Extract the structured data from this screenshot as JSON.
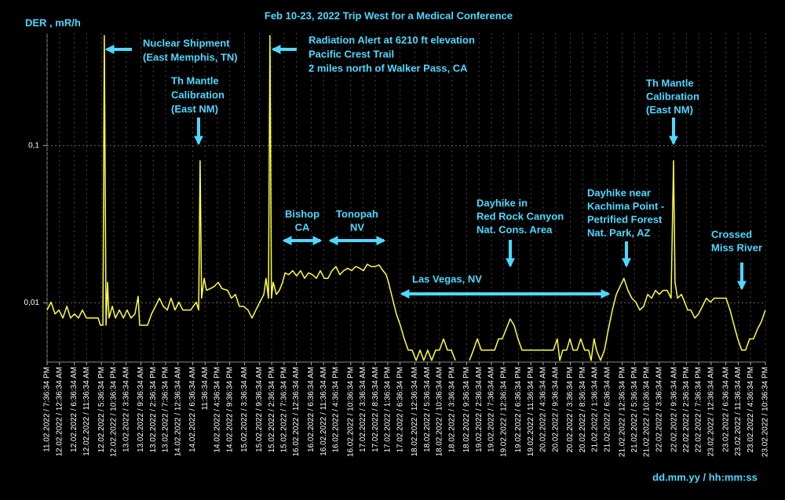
{
  "chart_data": {
    "type": "line",
    "title": "Feb 10-23, 2022 Trip West for a Medical Conference",
    "y_label": "DER , mR/h",
    "x_label": "dd.mm.yy / hh:mm:ss",
    "ylog": true,
    "grid": true,
    "ylim": [
      0.0042,
      0.52
    ],
    "yticks": [
      {
        "value": 0.01,
        "label": "0,01"
      },
      {
        "value": 0.1,
        "label": "0,1"
      }
    ],
    "xlim": [
      0,
      291
    ],
    "xticks": [
      {
        "value": 0,
        "label": "11.02.2022 / 7:36:34 PM"
      },
      {
        "value": 5,
        "label": "12.02.2022 / 12:36:34 AM"
      },
      {
        "value": 11,
        "label": "12.02.2022 / 6:36:34 AM"
      },
      {
        "value": 16,
        "label": "12.02.2022 / 11:36:34 AM"
      },
      {
        "value": 22,
        "label": "12.02.2022 / 5:36:34 PM"
      },
      {
        "value": 27,
        "label": "12.02.2022 / 10:36:34 PM"
      },
      {
        "value": 32,
        "label": "13.02.2022 / 3:36:34 AM"
      },
      {
        "value": 38,
        "label": "13.02.2022 / 9:36:34 AM"
      },
      {
        "value": 43,
        "label": "13.02.2022 / 2:36:34 PM"
      },
      {
        "value": 48,
        "label": "13.02.2022 / 7:36:34 PM"
      },
      {
        "value": 53,
        "label": "14.02.2022 / 12:36:34 AM"
      },
      {
        "value": 59,
        "label": "14.02.2022 / 6:36:34 AM"
      },
      {
        "value": 64,
        "label": "11:36:34 AM"
      },
      {
        "value": 69,
        "label": "14.02.2022 / 4:36:34 PM"
      },
      {
        "value": 74,
        "label": "14.02.2022 / 9:36:34 PM"
      },
      {
        "value": 80,
        "label": "15.02.2022 / 3:36:34 AM"
      },
      {
        "value": 86,
        "label": "15.02.2022 / 9:36:34 AM"
      },
      {
        "value": 91,
        "label": "15.02.2022 / 2:36:34 PM"
      },
      {
        "value": 96,
        "label": "15.02.2022 / 7:36:34 PM"
      },
      {
        "value": 101,
        "label": "16.02.2022 / 12:36:34 AM"
      },
      {
        "value": 107,
        "label": "16.02.2022 / 6:36:34 AM"
      },
      {
        "value": 112,
        "label": "16.02.2022 / 11:36:34 AM"
      },
      {
        "value": 117,
        "label": "16.02.2022 / 4:36:34 PM"
      },
      {
        "value": 123,
        "label": "16.02.2022 / 10:36:34 PM"
      },
      {
        "value": 128,
        "label": "17.02.2022 / 3:36:34 AM"
      },
      {
        "value": 133,
        "label": "17.02.2022 / 8:36:34 AM"
      },
      {
        "value": 138,
        "label": "17.02.2022 / 1:36:34 PM"
      },
      {
        "value": 143,
        "label": "17.02.2022 / 6:36:34 PM"
      },
      {
        "value": 149,
        "label": "18.02.2022 / 12:36:34 AM"
      },
      {
        "value": 154,
        "label": "18.02.2022 / 5:36:34 AM"
      },
      {
        "value": 159,
        "label": "18.02.2022 / 10:36:34 AM"
      },
      {
        "value": 164,
        "label": "18.02.2022 / 3:36:34 PM"
      },
      {
        "value": 170,
        "label": "18.02.2022 / 9:36:34 PM"
      },
      {
        "value": 175,
        "label": "19.02.2022 / 2:36:34 AM"
      },
      {
        "value": 180,
        "label": "19.02.2022 / 7:36:34 AM"
      },
      {
        "value": 185,
        "label": "19.02.2022 / 12:36:34 PM"
      },
      {
        "value": 191,
        "label": "19.02.2022 / 6:36:34 PM"
      },
      {
        "value": 196,
        "label": "19.02.2022 / 11:36:34 PM"
      },
      {
        "value": 201,
        "label": "20.02.2022 / 4:36:34 AM"
      },
      {
        "value": 206,
        "label": "20.02.2022 / 9:36:34 AM"
      },
      {
        "value": 212,
        "label": "20.02.2022 / 3:36:34 PM"
      },
      {
        "value": 217,
        "label": "20.02.2022 / 8:36:34 PM"
      },
      {
        "value": 222,
        "label": "21.02.2022 / 1:36:34 AM"
      },
      {
        "value": 227,
        "label": "21.02.2022 / 6:36:34 AM"
      },
      {
        "value": 233,
        "label": "21.02.2022 / 12:36:34 PM"
      },
      {
        "value": 238,
        "label": "21.02.2022 / 5:36:34 PM"
      },
      {
        "value": 243,
        "label": "21.02.2022 / 10:36:34 PM"
      },
      {
        "value": 248,
        "label": "22.02.2022 / 3:36:34 AM"
      },
      {
        "value": 254,
        "label": "22.02.2022 / 9:36:34 AM"
      },
      {
        "value": 259,
        "label": "22.02.2022 / 2:36:34 PM"
      },
      {
        "value": 264,
        "label": "22.02.2022 / 7:36:34 PM"
      },
      {
        "value": 269,
        "label": "23.02.2022 / 12:36:34 AM"
      },
      {
        "value": 275,
        "label": "23.02.2022 / 6:36:34 AM"
      },
      {
        "value": 280,
        "label": "23.02.2022 / 11:36:34 AM"
      },
      {
        "value": 285,
        "label": "23.02.2022 / 4:36:34 PM"
      },
      {
        "value": 291,
        "label": "23.02.2022 / 10:36:34 PM"
      }
    ],
    "series": [
      {
        "color": "#ffff40",
        "x": [
          0,
          1.6,
          3.2,
          4.8,
          6.4,
          8,
          9.5,
          11.1,
          12.7,
          14.3,
          15.9,
          19.1,
          20.7,
          21.6,
          22.6,
          23.2,
          23.9,
          24.5,
          25.1,
          26.4,
          27.7,
          29.3,
          30.9,
          32.4,
          34,
          35.6,
          36.9,
          37.5,
          40.7,
          42.3,
          43.9,
          45.5,
          47.1,
          48.7,
          50.2,
          51.8,
          53.4,
          55,
          58.2,
          60.4,
          61.4,
          62,
          62.6,
          63.6,
          64.6,
          66.1,
          67.7,
          69.3,
          70.9,
          73.1,
          74.7,
          76.3,
          77.9,
          79.5,
          81.4,
          83,
          84.6,
          86.2,
          87.8,
          88.7,
          89.7,
          90.3,
          90.9,
          91.6,
          92.9,
          94.1,
          95.4,
          96.4,
          97.9,
          99.5,
          101.1,
          102.7,
          104.3,
          105.9,
          107.5,
          109.1,
          110.7,
          112.3,
          113.8,
          115.4,
          117,
          118.6,
          120.2,
          121.8,
          123.4,
          125,
          126.6,
          128.2,
          129.7,
          131.3,
          132.9,
          134.5,
          136.1,
          137.4,
          138.3,
          139.9,
          141.5,
          143.1,
          144.7,
          146.3,
          147.9,
          149.5,
          151.1,
          152.6,
          154.2,
          155.8,
          157.4,
          159,
          160.6,
          162.2,
          163.8,
          165.4,
          168,
          171.1,
          172.7,
          174.3,
          175.9,
          177.4,
          179,
          181.3,
          182.9,
          184.4,
          186,
          187.6,
          189.2,
          190.8,
          192.4,
          194,
          197.2,
          200.3,
          203.5,
          205.1,
          206.7,
          207.7,
          208.9,
          210.5,
          211.8,
          213.1,
          214.7,
          216.2,
          217.8,
          219.4,
          220.4,
          221.6,
          222.6,
          224.2,
          225.8,
          227.4,
          229,
          230.6,
          232.1,
          233.7,
          235.3,
          236.9,
          238.5,
          240.1,
          241.7,
          243.3,
          244.9,
          246.5,
          248,
          249.6,
          251.2,
          252.8,
          253.8,
          254.4,
          255.4,
          257,
          258.3,
          259.5,
          260.8,
          262.4,
          263.9,
          265.5,
          267.1,
          268.7,
          270.3,
          271.9,
          273.5,
          275.1,
          276.7,
          278.3,
          279.8,
          281.4,
          283,
          284.6,
          286.2,
          287.8,
          289.4,
          291
        ],
        "values": [
          0.009,
          0.0101,
          0.0085,
          0.009,
          0.008,
          0.0095,
          0.008,
          0.0085,
          0.008,
          0.009,
          0.008,
          0.008,
          0.008,
          0.0072,
          0.0072,
          0.5,
          0.0072,
          0.0135,
          0.008,
          0.0095,
          0.008,
          0.009,
          0.008,
          0.009,
          0.008,
          0.0085,
          0.011,
          0.0072,
          0.0072,
          0.0085,
          0.0095,
          0.0107,
          0.0095,
          0.009,
          0.0107,
          0.009,
          0.0101,
          0.009,
          0.009,
          0.0101,
          0.009,
          0.08,
          0.0107,
          0.0143,
          0.012,
          0.0123,
          0.0127,
          0.0135,
          0.0123,
          0.012,
          0.0107,
          0.0113,
          0.0095,
          0.0095,
          0.009,
          0.008,
          0.009,
          0.0101,
          0.0113,
          0.0143,
          0.0107,
          0.5,
          0.0107,
          0.0135,
          0.0113,
          0.012,
          0.0135,
          0.0155,
          0.0151,
          0.016,
          0.0148,
          0.016,
          0.0143,
          0.0155,
          0.0151,
          0.0143,
          0.016,
          0.0143,
          0.0143,
          0.016,
          0.017,
          0.0151,
          0.016,
          0.0166,
          0.016,
          0.017,
          0.0166,
          0.016,
          0.0176,
          0.017,
          0.017,
          0.0174,
          0.016,
          0.0151,
          0.0135,
          0.0107,
          0.0085,
          0.0072,
          0.0059,
          0.005,
          0.005,
          0.0043,
          0.005,
          0.0043,
          0.005,
          0.0043,
          0.005,
          0.005,
          0.0059,
          0.005,
          0.005,
          0.0043,
          null,
          0.0043,
          0.005,
          0.0059,
          0.005,
          0.005,
          0.005,
          0.005,
          0.0059,
          0.0059,
          0.0068,
          0.0079,
          0.0072,
          0.0059,
          0.005,
          0.005,
          0.005,
          0.005,
          0.005,
          0.005,
          0.0059,
          0.0043,
          0.005,
          0.005,
          0.0059,
          0.005,
          0.005,
          0.0059,
          0.005,
          0.005,
          0.0043,
          0.0059,
          0.005,
          0.0043,
          0.005,
          0.0068,
          0.009,
          0.0113,
          0.0127,
          0.0143,
          0.012,
          0.0107,
          0.0101,
          0.009,
          0.0095,
          0.0113,
          0.0107,
          0.012,
          0.0113,
          0.012,
          0.012,
          0.0107,
          0.08,
          0.0135,
          0.0107,
          0.0113,
          0.0101,
          0.009,
          0.009,
          0.008,
          0.0085,
          0.0095,
          0.0107,
          0.0101,
          0.0107,
          0.0107,
          0.0107,
          0.0107,
          0.009,
          0.0072,
          0.0059,
          0.005,
          0.005,
          0.0059,
          0.0059,
          0.0068,
          0.0076,
          0.009
        ]
      }
    ],
    "annotations": [
      {
        "lines": [
          "Nuclear Shipment",
          "(East Memphis, TN)"
        ]
      },
      {
        "lines": [
          "Th Mantle",
          "Calibration",
          "(East NM)"
        ]
      },
      {
        "lines": [
          "Radiation Alert at 6210 ft elevation",
          "Pacific Crest Trail",
          "2 miles north of Walker Pass, CA"
        ]
      },
      {
        "lines": [
          "Bishop",
          "CA"
        ]
      },
      {
        "lines": [
          "Tonopah",
          "NV"
        ]
      },
      {
        "lines": [
          "Las Vegas, NV"
        ]
      },
      {
        "lines": [
          "Dayhike in",
          "Red Rock Canyon",
          "Nat. Cons. Area"
        ]
      },
      {
        "lines": [
          "Dayhike near",
          "Kachima Point -",
          "Petrified Forest",
          "Nat. Park, AZ"
        ]
      },
      {
        "lines": [
          "Th Mantle",
          "Calibration",
          "(East NM)"
        ]
      },
      {
        "lines": [
          "Crossed",
          "Miss River"
        ]
      }
    ]
  }
}
